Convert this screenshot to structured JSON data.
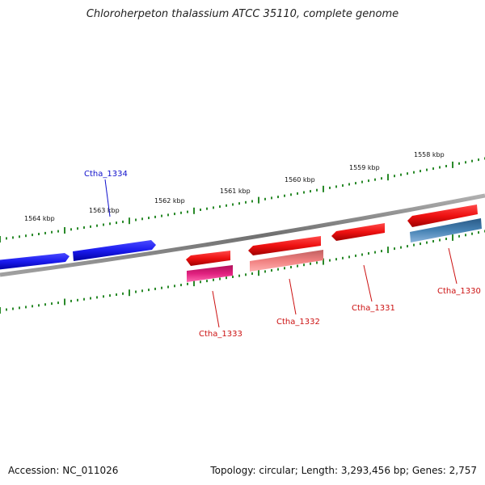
{
  "title": "Chloroherpeton thalassium ATCC 35110, complete genome",
  "footer": {
    "accession": "Accession: NC_011026",
    "summary": "Topology: circular; Length: 3,293,456 bp; Genes: 2,757"
  },
  "colors": {
    "backbone": "#808080",
    "ticks": "#2a8a2a",
    "label_blue": "#1010cc",
    "label_red": "#cc1111"
  },
  "ruler": {
    "unit": "kbp",
    "labels": [
      "1564 kbp",
      "1563 kbp",
      "1562 kbp",
      "1561 kbp",
      "1560 kbp",
      "1559 kbp",
      "1558 kbp"
    ]
  },
  "genes": [
    {
      "id": "ctha-1334-part-a",
      "label": "",
      "strand": "+",
      "color": "#1a1aee"
    },
    {
      "id": "ctha-1334",
      "label": "Ctha_1334",
      "strand": "+",
      "color": "#1a1aee",
      "label_color": "#1010cc"
    },
    {
      "id": "ctha-1333",
      "label": "Ctha_1333",
      "strand": "-",
      "color": "#ee1111",
      "label_color": "#cc1111"
    },
    {
      "id": "ctha-1333-feature",
      "label": "",
      "strand": "-",
      "color": "#e0207f"
    },
    {
      "id": "ctha-1332",
      "label": "Ctha_1332",
      "strand": "-",
      "color": "#ee1111",
      "label_color": "#cc1111"
    },
    {
      "id": "ctha-1332-feature",
      "label": "",
      "strand": "-",
      "color": "#f08080"
    },
    {
      "id": "ctha-1331",
      "label": "Ctha_1331",
      "strand": "-",
      "color": "#ee1111",
      "label_color": "#cc1111"
    },
    {
      "id": "ctha-1330",
      "label": "Ctha_1330",
      "strand": "-",
      "color": "#ee1111",
      "label_color": "#cc1111"
    },
    {
      "id": "ctha-1330-feature",
      "label": "",
      "strand": "-",
      "color": "#4682b4"
    }
  ]
}
